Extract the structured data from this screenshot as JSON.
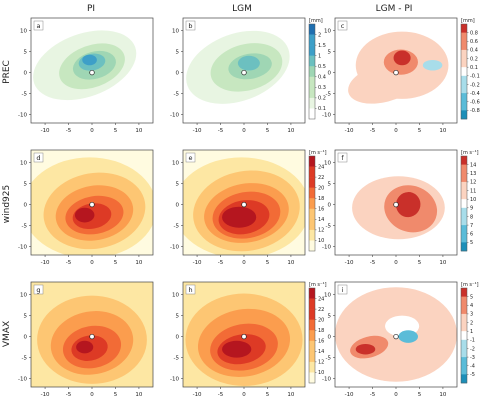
{
  "column_titles": [
    "PI",
    "LGM",
    "LGM - PI"
  ],
  "row_labels": [
    "PREC",
    "wind925",
    "VMAX"
  ],
  "panel_letters": [
    "a",
    "b",
    "c",
    "d",
    "e",
    "f",
    "g",
    "h",
    "i"
  ],
  "colors": {
    "prec_scale": [
      "#ffffff",
      "#e8f5e2",
      "#c7e7c0",
      "#9fd6b4",
      "#6cc0c0",
      "#3d9fc8",
      "#1f6fb0"
    ],
    "wind_scale": [
      "#fffbe0",
      "#fde7a3",
      "#fdc673",
      "#fb9d4e",
      "#f26b36",
      "#dd3a25",
      "#b5161f"
    ],
    "diff_scale": [
      "#1d8fb8",
      "#5bbcd8",
      "#a8ddea",
      "#ffffff",
      "#fbd3c0",
      "#f08a6c",
      "#c9302a"
    ]
  },
  "chart_data": [
    {
      "type": "heatmap",
      "panel": "a",
      "column": "PI",
      "row": "PREC",
      "xticks": [
        -10,
        -5,
        0,
        5,
        10
      ],
      "yticks": [
        -10,
        -5,
        0,
        5,
        10
      ],
      "xlim": [
        -13,
        13
      ],
      "ylim": [
        -12,
        13
      ]
    },
    {
      "type": "heatmap",
      "panel": "b",
      "column": "LGM",
      "row": "PREC",
      "xticks": [
        -10,
        -5,
        0,
        5,
        10
      ],
      "yticks": [
        -10,
        -5,
        0,
        5,
        10
      ],
      "xlim": [
        -13,
        13
      ],
      "ylim": [
        -12,
        13
      ],
      "colorbar": {
        "unit": "[mm]",
        "ticks": [
          "2",
          "1.5",
          "1",
          "0.5",
          "0.4",
          "0.3",
          "0.2",
          "0.1"
        ]
      }
    },
    {
      "type": "heatmap",
      "panel": "c",
      "column": "LGM - PI",
      "row": "PREC",
      "xticks": [
        -10,
        -5,
        0,
        5,
        10
      ],
      "yticks": [
        -10,
        -5,
        0,
        5,
        10
      ],
      "xlim": [
        -13,
        13
      ],
      "ylim": [
        -12,
        13
      ],
      "colorbar": {
        "unit": "[mm]",
        "ticks": [
          "0.8",
          "0.6",
          "0.4",
          "0.2",
          "0.1",
          "-0.1",
          "-0.2",
          "-0.4",
          "-0.6",
          "-0.8"
        ]
      }
    },
    {
      "type": "heatmap",
      "panel": "d",
      "column": "PI",
      "row": "wind925",
      "xticks": [
        -10,
        -5,
        0,
        5,
        10
      ],
      "yticks": [
        -10,
        -5,
        0,
        5,
        10
      ],
      "xlim": [
        -13,
        13
      ],
      "ylim": [
        -12,
        13
      ]
    },
    {
      "type": "heatmap",
      "panel": "e",
      "column": "LGM",
      "row": "wind925",
      "xticks": [
        -10,
        -5,
        0,
        5,
        10
      ],
      "yticks": [
        -10,
        -5,
        0,
        5,
        10
      ],
      "xlim": [
        -13,
        13
      ],
      "ylim": [
        -12,
        13
      ],
      "colorbar": {
        "unit": "[m s⁻¹]",
        "ticks": [
          "24",
          "22",
          "20",
          "18",
          "16",
          "14",
          "12",
          "10"
        ]
      }
    },
    {
      "type": "heatmap",
      "panel": "f",
      "column": "LGM - PI",
      "row": "wind925",
      "xticks": [
        -10,
        -5,
        0,
        5,
        10
      ],
      "yticks": [
        -10,
        -5,
        0,
        5,
        10
      ],
      "xlim": [
        -13,
        13
      ],
      "ylim": [
        -12,
        13
      ],
      "colorbar": {
        "unit": "[m s⁻¹]",
        "ticks": [
          "14",
          "13",
          "12",
          "11",
          "10",
          "9",
          "8",
          "7",
          "6",
          "5"
        ]
      }
    },
    {
      "type": "heatmap",
      "panel": "g",
      "column": "PI",
      "row": "VMAX",
      "xticks": [
        -10,
        -5,
        0,
        5,
        10
      ],
      "yticks": [
        -10,
        -5,
        0,
        5,
        10
      ],
      "xlim": [
        -13,
        13
      ],
      "ylim": [
        -12,
        13
      ]
    },
    {
      "type": "heatmap",
      "panel": "h",
      "column": "LGM",
      "row": "VMAX",
      "xticks": [
        -10,
        -5,
        0,
        5,
        10
      ],
      "yticks": [
        -10,
        -5,
        0,
        5,
        10
      ],
      "xlim": [
        -13,
        13
      ],
      "ylim": [
        -12,
        13
      ],
      "colorbar": {
        "unit": "[m s⁻¹]",
        "ticks": [
          "24",
          "22",
          "20",
          "18",
          "16",
          "14",
          "12",
          "10"
        ]
      }
    },
    {
      "type": "heatmap",
      "panel": "i",
      "column": "LGM - PI",
      "row": "VMAX",
      "xticks": [
        -10,
        -5,
        0,
        5,
        10
      ],
      "yticks": [
        -10,
        -5,
        0,
        5,
        10
      ],
      "xlim": [
        -13,
        13
      ],
      "ylim": [
        -12,
        13
      ],
      "colorbar": {
        "unit": "[m s⁻¹]",
        "ticks": [
          "5",
          "4",
          "3",
          "2",
          "1",
          "-1",
          "-2",
          "-3",
          "-4",
          "-5"
        ]
      }
    }
  ]
}
